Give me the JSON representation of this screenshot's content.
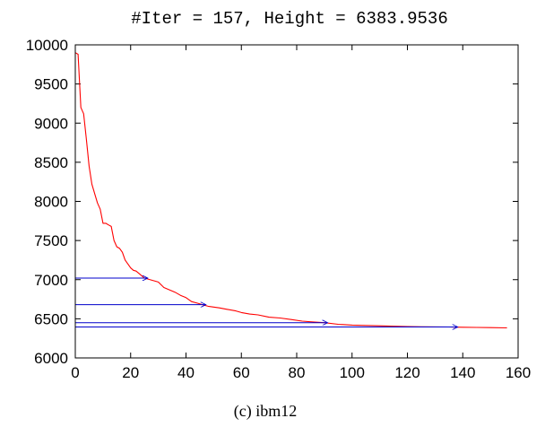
{
  "chart_data": {
    "type": "line",
    "title": "#Iter = 157, Height = 6383.9536",
    "caption": "(c) ibm12",
    "xlabel": "",
    "ylabel": "",
    "xlim": [
      0,
      160
    ],
    "ylim": [
      6000,
      10000
    ],
    "x_ticks": [
      0,
      20,
      40,
      60,
      80,
      100,
      120,
      140,
      160
    ],
    "y_ticks": [
      6000,
      6500,
      7000,
      7500,
      8000,
      8500,
      9000,
      9500,
      10000
    ],
    "grid": false,
    "legend": "none",
    "colors": {
      "series": "#ff0000",
      "arrows": "#0000cc",
      "axes": "#000000"
    },
    "series": [
      {
        "x": [
          0,
          1,
          2,
          3,
          4,
          5,
          6,
          7,
          8,
          9,
          10,
          11,
          12,
          13,
          14,
          15,
          16,
          17,
          18,
          19,
          20,
          21,
          22,
          23,
          24,
          25,
          26,
          28,
          30,
          32,
          34,
          36,
          38,
          40,
          42,
          44,
          46,
          48,
          50,
          52,
          55,
          58,
          60,
          63,
          66,
          70,
          74,
          78,
          82,
          86,
          90,
          95,
          100,
          105,
          110,
          115,
          120,
          125,
          130,
          135,
          140,
          145,
          150,
          156
        ],
        "y": [
          9900,
          9880,
          9200,
          9120,
          8800,
          8450,
          8220,
          8100,
          7980,
          7900,
          7720,
          7720,
          7700,
          7680,
          7500,
          7420,
          7400,
          7350,
          7250,
          7200,
          7150,
          7120,
          7110,
          7080,
          7050,
          7020,
          7010,
          6990,
          6970,
          6900,
          6870,
          6840,
          6800,
          6770,
          6720,
          6700,
          6680,
          6660,
          6650,
          6640,
          6620,
          6600,
          6580,
          6560,
          6550,
          6520,
          6510,
          6490,
          6470,
          6460,
          6450,
          6430,
          6420,
          6415,
          6410,
          6405,
          6400,
          6398,
          6396,
          6395,
          6392,
          6390,
          6387,
          6384
        ]
      }
    ],
    "annotations": [
      {
        "type": "arrow",
        "x_start": 0,
        "x_end": 26,
        "y": 7020
      },
      {
        "type": "arrow",
        "x_start": 0,
        "x_end": 47,
        "y": 6680
      },
      {
        "type": "arrow",
        "x_start": 0,
        "x_end": 91,
        "y": 6450
      },
      {
        "type": "arrow",
        "x_start": 0,
        "x_end": 138,
        "y": 6395
      }
    ]
  }
}
